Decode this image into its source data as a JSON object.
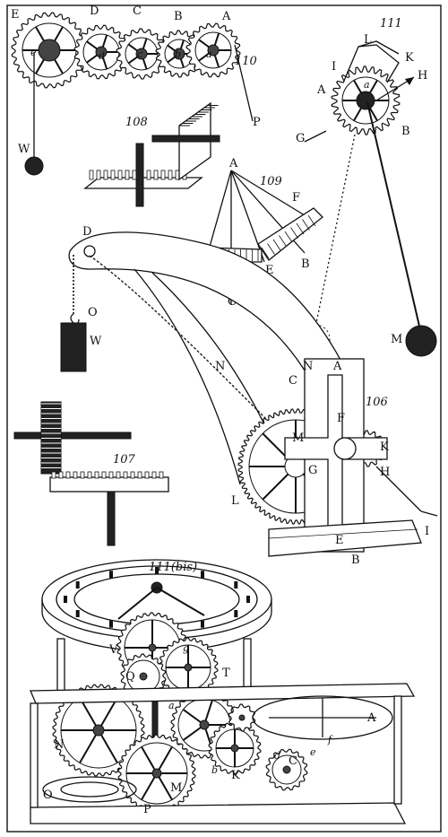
{
  "figures": [
    {
      "id": "fig-110",
      "number": "110",
      "labels": [
        "E",
        "D",
        "C",
        "B",
        "A",
        "W",
        "P"
      ],
      "sublabels": [
        "e",
        "d",
        "c",
        "b",
        "a"
      ]
    },
    {
      "id": "fig-108",
      "number": "108"
    },
    {
      "id": "fig-109",
      "number": "109",
      "labels": [
        "A",
        "F",
        "D",
        "E",
        "B",
        "C"
      ]
    },
    {
      "id": "fig-111",
      "number": "111",
      "labels": [
        "L",
        "K",
        "H",
        "I",
        "A",
        "B",
        "G",
        "M"
      ],
      "sublabels": [
        "a"
      ]
    },
    {
      "id": "fig-106",
      "number": "106",
      "labels": [
        "D",
        "O",
        "W",
        "N",
        "C",
        "A",
        "F",
        "M",
        "G",
        "K",
        "H",
        "L",
        "E",
        "B",
        "I",
        "N"
      ]
    },
    {
      "id": "fig-107",
      "number": "107"
    },
    {
      "id": "fig-111bis",
      "number": "111(bis)",
      "labels": [
        "V",
        "Q",
        "T",
        "N",
        "A",
        "K",
        "M",
        "O",
        "P",
        "C"
      ],
      "sublabels": [
        "g",
        "a",
        "b",
        "d",
        "e",
        "f"
      ]
    }
  ]
}
